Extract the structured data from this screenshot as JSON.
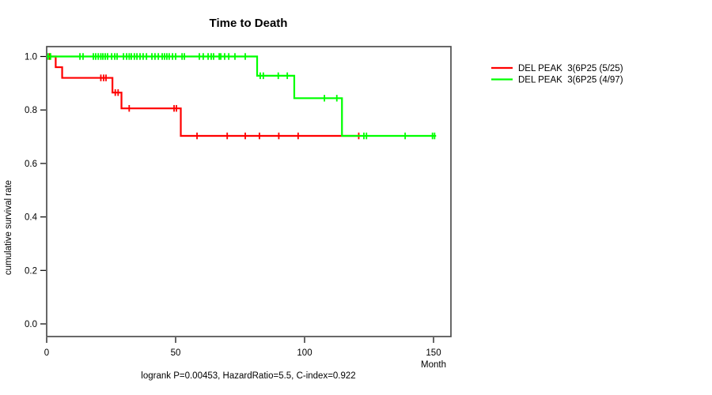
{
  "title": "Time to Death",
  "footer": "logrank P=0.00453, HazardRatio=5.5, C-index=0.922",
  "axes": {
    "y_label": "cumulative survival rate",
    "x_label": "Month",
    "y_tick_labels": [
      "1.0",
      "0.8",
      "0.6",
      "0.4",
      "0.2",
      "0.0"
    ],
    "x_tick_labels": [
      "0",
      "50",
      "100",
      "150"
    ]
  },
  "legend": {
    "items": [
      {
        "label": "DEL PEAK  3(6P25 (5/25)",
        "color": "#ff0000"
      },
      {
        "label": "DEL PEAK  3(6P25 (4/97)",
        "color": "#00ff00"
      }
    ]
  },
  "chart_data": {
    "type": "line",
    "subtype": "kaplan-meier-step-function",
    "title": "Time to Death",
    "xlabel": "Month",
    "ylabel": "cumulative survival rate",
    "annotation": "logrank P=0.00453, HazardRatio=5.5, C-index=0.922",
    "x_ticks": [
      0,
      50,
      100,
      150
    ],
    "y_ticks": [
      0.0,
      0.2,
      0.4,
      0.6,
      0.8,
      1.0
    ],
    "xlim": [
      0,
      157
    ],
    "ylim": [
      -0.04,
      1.04
    ],
    "grid": false,
    "legend_position": "outside-right",
    "statistics": {
      "logrank_p": 0.00453,
      "hazard_ratio": 5.5,
      "c_index": 0.922
    },
    "series": [
      {
        "name": "DEL PEAK  3(6P25 (5/25)",
        "color": "#ff0000",
        "events_over_n": "5/25",
        "steps": [
          [
            0,
            1.0
          ],
          [
            3.5,
            0.96
          ],
          [
            6,
            0.92
          ],
          [
            25.5,
            0.865
          ],
          [
            29,
            0.806
          ],
          [
            52,
            0.703
          ]
        ],
        "end_month": 121.5,
        "censor_marks": [
          [
            1.2,
            1.0
          ],
          [
            21,
            0.92
          ],
          [
            22.1,
            0.92
          ],
          [
            23,
            0.92
          ],
          [
            26.6,
            0.865
          ],
          [
            27.7,
            0.865
          ],
          [
            32,
            0.806
          ],
          [
            49.4,
            0.806
          ],
          [
            50.3,
            0.806
          ],
          [
            58.3,
            0.703
          ],
          [
            70,
            0.703
          ],
          [
            77,
            0.703
          ],
          [
            82.5,
            0.703
          ],
          [
            90,
            0.703
          ],
          [
            97.5,
            0.703
          ],
          [
            121,
            0.703
          ]
        ]
      },
      {
        "name": "DEL PEAK  3(6P25 (4/97)",
        "color": "#00ff00",
        "events_over_n": "4/97",
        "steps": [
          [
            0,
            1.0
          ],
          [
            81.6,
            0.928
          ],
          [
            96,
            0.844
          ],
          [
            114.5,
            0.703
          ]
        ],
        "end_month": 151,
        "censor_marks": [
          [
            0.6,
            1.0
          ],
          [
            1.5,
            1.0
          ],
          [
            12.9,
            1.0
          ],
          [
            14.1,
            1.0
          ],
          [
            18.1,
            1.0
          ],
          [
            19,
            1.0
          ],
          [
            20,
            1.0
          ],
          [
            21,
            1.0
          ],
          [
            21.8,
            1.0
          ],
          [
            22.7,
            1.0
          ],
          [
            23.6,
            1.0
          ],
          [
            25.2,
            1.0
          ],
          [
            26.4,
            1.0
          ],
          [
            27.3,
            1.0
          ],
          [
            29.8,
            1.0
          ],
          [
            31,
            1.0
          ],
          [
            32,
            1.0
          ],
          [
            32.8,
            1.0
          ],
          [
            34,
            1.0
          ],
          [
            35,
            1.0
          ],
          [
            36.2,
            1.0
          ],
          [
            37.4,
            1.0
          ],
          [
            38.7,
            1.0
          ],
          [
            40.8,
            1.0
          ],
          [
            42,
            1.0
          ],
          [
            43.3,
            1.0
          ],
          [
            44.8,
            1.0
          ],
          [
            45.7,
            1.0
          ],
          [
            46.6,
            1.0
          ],
          [
            47.5,
            1.0
          ],
          [
            48.8,
            1.0
          ],
          [
            50,
            1.0
          ],
          [
            52.5,
            1.0
          ],
          [
            53.4,
            1.0
          ],
          [
            59.2,
            1.0
          ],
          [
            60.7,
            1.0
          ],
          [
            62.6,
            1.0
          ],
          [
            63.8,
            1.0
          ],
          [
            64.7,
            1.0
          ],
          [
            66.9,
            1.0
          ],
          [
            67.5,
            1.0
          ],
          [
            69,
            1.0
          ],
          [
            70.6,
            1.0
          ],
          [
            73,
            1.0
          ],
          [
            77,
            1.0
          ],
          [
            82.8,
            0.928
          ],
          [
            84,
            0.928
          ],
          [
            89.8,
            0.928
          ],
          [
            93.3,
            0.928
          ],
          [
            107.7,
            0.844
          ],
          [
            112.5,
            0.844
          ],
          [
            123,
            0.703
          ],
          [
            124,
            0.703
          ],
          [
            139,
            0.703
          ],
          [
            149.6,
            0.703
          ],
          [
            150.4,
            0.703
          ]
        ]
      }
    ]
  }
}
